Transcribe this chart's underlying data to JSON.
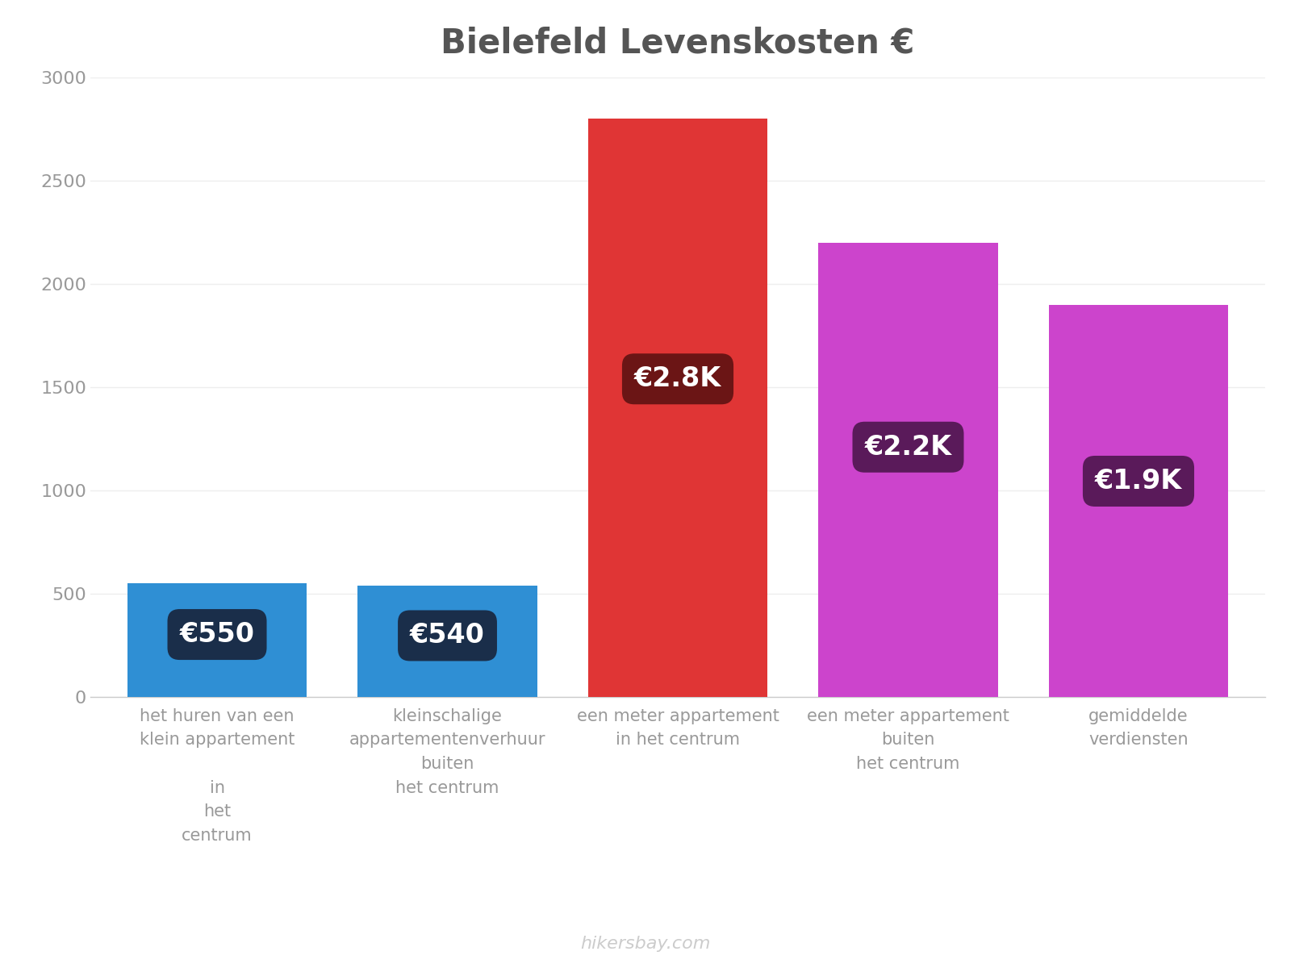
{
  "title": "Bielefeld Levenskosten €",
  "categories": [
    "het huren van een\nklein appartement\n\nin\nhet\ncentrum",
    "kleinschalige\nappartementenverhuur\nbuiten\nhet centrum",
    "een meter appartement\nin het centrum",
    "een meter appartement\nbuiten\nhet centrum",
    "gemiddelde\nverdiensten"
  ],
  "values": [
    550,
    540,
    2800,
    2200,
    1900
  ],
  "bar_colors": [
    "#2f8fd4",
    "#2f8fd4",
    "#e03535",
    "#cc44cc",
    "#cc44cc"
  ],
  "label_texts": [
    "€550",
    "€540",
    "€2.8K",
    "€2.2K",
    "€1.9K"
  ],
  "label_bg_colors": [
    "#1a2e4a",
    "#1a2e4a",
    "#6b1515",
    "#5a1a5a",
    "#5a1a5a"
  ],
  "ylim": [
    0,
    3000
  ],
  "yticks": [
    0,
    500,
    1000,
    1500,
    2000,
    2500,
    3000
  ],
  "background_color": "#ffffff",
  "title_fontsize": 30,
  "tick_fontsize": 16,
  "label_fontsize": 24,
  "xlabel_fontsize": 15,
  "watermark": "hikersbay.com",
  "bar_width": 0.78
}
